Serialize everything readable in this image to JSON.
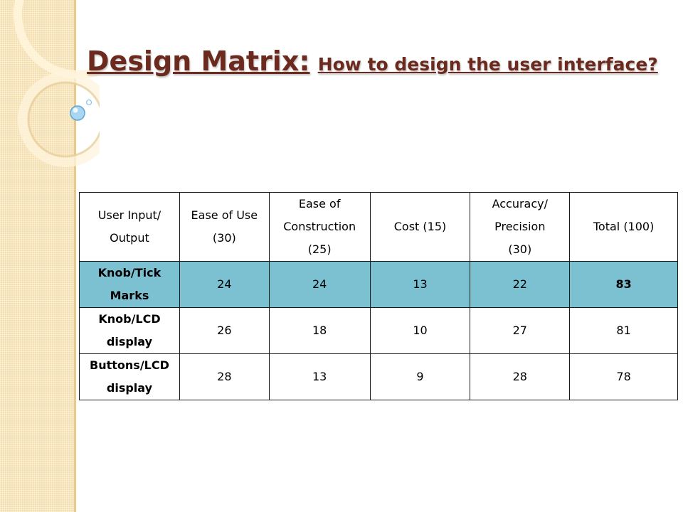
{
  "title": {
    "main": "Design Matrix:",
    "sub": "How to design the user interface?"
  },
  "table": {
    "headers": [
      [
        "User  Input/",
        "Output"
      ],
      [
        "Ease of Use",
        "(30)"
      ],
      [
        "Ease of",
        "Construction",
        "(25)"
      ],
      [
        "Cost (15)"
      ],
      [
        "Accuracy/",
        "Precision",
        "(30)"
      ],
      [
        "Total (100)"
      ]
    ],
    "rows": [
      {
        "label": [
          "Knob/Tick",
          "Marks"
        ],
        "values": [
          "24",
          "24",
          "13",
          "22",
          "83"
        ],
        "highlight": true
      },
      {
        "label": [
          "Knob/LCD",
          "display"
        ],
        "values": [
          "26",
          "18",
          "10",
          "27",
          "81"
        ],
        "highlight": false
      },
      {
        "label": [
          "Buttons/LCD",
          "display"
        ],
        "values": [
          "28",
          "13",
          "9",
          "28",
          "78"
        ],
        "highlight": false
      }
    ]
  },
  "colors": {
    "title": "#6b2a1d",
    "highlight_row": "#7cc1d2",
    "side_band": "#f5dfae"
  }
}
